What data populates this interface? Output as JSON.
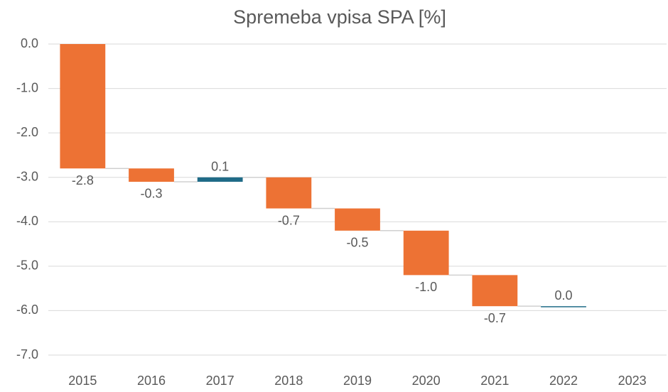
{
  "chart_data": {
    "type": "waterfall",
    "title": "Spremeba vpisa SPA [%]",
    "categories": [
      "2015",
      "2016",
      "2017",
      "2018",
      "2019",
      "2020",
      "2021",
      "2022",
      "2023"
    ],
    "values": [
      -2.8,
      -0.3,
      0.1,
      -0.7,
      -0.5,
      -1.0,
      -0.7,
      0.0,
      null
    ],
    "value_labels": [
      "-2.8",
      "-0.3",
      "0.1",
      "-0.7",
      "-0.5",
      "-1.0",
      "-0.7",
      "0.0",
      null
    ],
    "increase_color": "#1f6b87",
    "decrease_color": "#ed7234",
    "ylim": [
      -7,
      0
    ],
    "yticks": [
      {
        "value": 0,
        "label": "0.0"
      },
      {
        "value": -1,
        "label": "-1.0"
      },
      {
        "value": -2,
        "label": "-2.0"
      },
      {
        "value": -3,
        "label": "-3.0"
      },
      {
        "value": -4,
        "label": "-4.0"
      },
      {
        "value": -5,
        "label": "-5.0"
      },
      {
        "value": -6,
        "label": "-6.0"
      },
      {
        "value": -7,
        "label": "-7.0"
      }
    ],
    "grid": true
  }
}
